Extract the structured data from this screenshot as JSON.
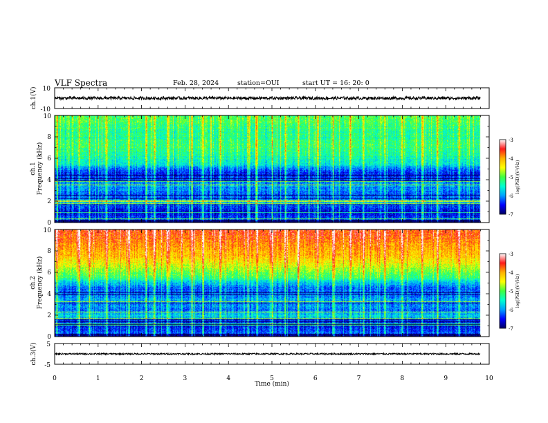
{
  "header": {
    "title": "VLF Spectra",
    "date": "Feb. 28, 2024",
    "station": "station=OUI",
    "start_ut": "start UT =  16: 20: 0"
  },
  "panels": {
    "ch1_wave": {
      "ylabel": "ch.1(V)",
      "yticks": [
        "10",
        "-10"
      ]
    },
    "ch1_spec": {
      "ylabel_top": "ch.1",
      "ylabel": "Frequency (kHz)",
      "yticks": [
        "0",
        "2",
        "4",
        "6",
        "8",
        "10"
      ]
    },
    "ch2_spec": {
      "ylabel_top": "ch.2",
      "ylabel": "Frequency (kHz)",
      "yticks": [
        "0",
        "2",
        "4",
        "6",
        "8",
        "10"
      ]
    },
    "ch3_wave": {
      "ylabel": "ch.3(V)",
      "yticks": [
        "5",
        "-5"
      ]
    }
  },
  "xaxis": {
    "label": "Time (min)",
    "ticks": [
      "0",
      "1",
      "2",
      "3",
      "4",
      "5",
      "6",
      "7",
      "8",
      "9",
      "10"
    ]
  },
  "colorbar": {
    "label": "log(PSD)(V²/Hz)",
    "ticks": [
      "-3",
      "-4",
      "-5",
      "-6",
      "-7"
    ],
    "colors": [
      "#ffffff",
      "#ff1a1a",
      "#ffb000",
      "#ffff00",
      "#40ff40",
      "#00ffd0",
      "#00a0ff",
      "#0000ff",
      "#000060"
    ]
  },
  "chart_data": [
    {
      "type": "line",
      "panel": "ch1_wave",
      "xlabel": "Time (min)",
      "ylabel": "ch.1(V)",
      "xlim": [
        0,
        10
      ],
      "ylim": [
        -10,
        10
      ],
      "series": [
        {
          "x": [
            0,
            9.8
          ],
          "y": [
            0,
            0
          ],
          "amplitude_v": 1.5
        }
      ],
      "grid": false
    },
    {
      "type": "heatmap",
      "panel": "ch1_spec",
      "xlabel": "Time (min)",
      "ylabel": "Frequency (kHz)",
      "xlim": [
        0,
        10
      ],
      "ylim": [
        0,
        10
      ],
      "zlabel": "log(PSD)(V²/Hz)",
      "zlim": [
        -7,
        -3
      ],
      "data_end_min": 9.8,
      "freq_profile_khz": [
        0,
        0.5,
        1,
        1.5,
        2,
        2.5,
        3,
        3.5,
        4,
        4.5,
        5,
        5.5,
        6,
        6.5,
        7,
        7.5,
        8,
        8.5,
        9,
        9.5,
        10
      ],
      "freq_profile_logpsd": [
        -6.2,
        -6.4,
        -6.6,
        -6.4,
        -5.8,
        -6.3,
        -6.1,
        -6.0,
        -6.3,
        -6.5,
        -6.2,
        -5.6,
        -5.4,
        -5.3,
        -5.2,
        -5.2,
        -5.3,
        -5.3,
        -5.2,
        -5.1,
        -5.1
      ],
      "bursts_min": [
        0.05,
        0.55,
        0.8,
        1.2,
        1.7,
        2.1,
        2.3,
        2.6,
        3.15,
        3.4,
        3.8,
        4.45,
        4.65,
        5.0,
        5.3,
        5.6,
        6.05,
        6.4,
        6.8,
        7.1,
        7.6,
        8.0,
        8.45,
        8.8,
        9.3
      ],
      "grid": false
    },
    {
      "type": "heatmap",
      "panel": "ch2_spec",
      "xlabel": "Time (min)",
      "ylabel": "Frequency (kHz)",
      "xlim": [
        0,
        10
      ],
      "ylim": [
        0,
        10
      ],
      "zlabel": "log(PSD)(V²/Hz)",
      "zlim": [
        -7,
        -3
      ],
      "data_end_min": 9.8,
      "freq_profile_khz": [
        0,
        0.5,
        1,
        1.5,
        2,
        2.5,
        3,
        3.5,
        4,
        4.5,
        5,
        5.5,
        6,
        6.5,
        7,
        7.5,
        8,
        8.5,
        9,
        9.5,
        10
      ],
      "freq_profile_logpsd": [
        -6.1,
        -6.3,
        -6.5,
        -6.3,
        -5.7,
        -6.2,
        -6.0,
        -5.9,
        -6.1,
        -6.2,
        -5.8,
        -5.2,
        -4.9,
        -4.6,
        -4.4,
        -4.2,
        -4.0,
        -3.9,
        -3.8,
        -3.7,
        -3.6
      ],
      "bursts_min": [
        0.05,
        0.55,
        0.8,
        1.2,
        1.7,
        2.1,
        2.3,
        2.6,
        3.15,
        3.4,
        3.8,
        4.45,
        4.65,
        5.0,
        5.3,
        5.6,
        6.05,
        6.4,
        6.8,
        7.1,
        7.6,
        8.0,
        8.45,
        8.8,
        9.3
      ],
      "grid": false
    },
    {
      "type": "line",
      "panel": "ch3_wave",
      "xlabel": "Time (min)",
      "ylabel": "ch.3(V)",
      "xlim": [
        0,
        10
      ],
      "ylim": [
        -5,
        5
      ],
      "series": [
        {
          "x": [
            0,
            9.8
          ],
          "y": [
            0,
            0
          ],
          "amplitude_v": 0.35
        }
      ],
      "grid": false
    }
  ]
}
